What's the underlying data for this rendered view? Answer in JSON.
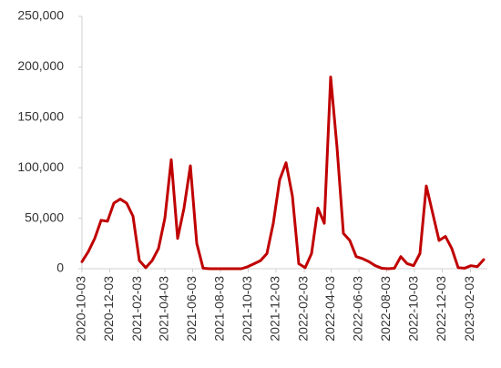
{
  "chart_data": {
    "type": "line",
    "x": [
      "2020-10-03",
      "2020-10-17",
      "2020-10-31",
      "2020-11-14",
      "2020-11-28",
      "2020-12-12",
      "2020-12-26",
      "2021-01-09",
      "2021-01-23",
      "2021-02-06",
      "2021-02-20",
      "2021-03-06",
      "2021-03-20",
      "2021-04-03",
      "2021-04-17",
      "2021-05-01",
      "2021-05-15",
      "2021-05-29",
      "2021-06-12",
      "2021-06-26",
      "2021-07-10",
      "2021-07-24",
      "2021-08-07",
      "2021-08-21",
      "2021-09-04",
      "2021-09-18",
      "2021-10-02",
      "2021-10-16",
      "2021-10-30",
      "2021-11-13",
      "2021-11-27",
      "2021-12-11",
      "2021-12-25",
      "2022-01-08",
      "2022-01-22",
      "2022-02-05",
      "2022-02-19",
      "2022-03-05",
      "2022-03-19",
      "2022-04-02",
      "2022-04-16",
      "2022-04-30",
      "2022-05-14",
      "2022-05-28",
      "2022-06-11",
      "2022-06-25",
      "2022-07-09",
      "2022-07-23",
      "2022-08-06",
      "2022-08-20",
      "2022-09-03",
      "2022-09-17",
      "2022-10-01",
      "2022-10-15",
      "2022-10-29",
      "2022-11-12",
      "2022-11-26",
      "2022-12-10",
      "2022-12-24",
      "2023-01-07",
      "2023-01-21",
      "2023-02-04",
      "2023-02-18",
      "2023-03-04"
    ],
    "series": [
      {
        "color": "#c00000",
        "values": [
          7000,
          17000,
          30000,
          48000,
          47000,
          65000,
          69000,
          65000,
          52000,
          8000,
          1000,
          8000,
          20000,
          50000,
          108000,
          30000,
          60000,
          102000,
          25000,
          500,
          0,
          0,
          0,
          0,
          0,
          0,
          2000,
          5000,
          8000,
          15000,
          45000,
          88000,
          105000,
          72000,
          5000,
          1000,
          15000,
          60000,
          45000,
          190000,
          120000,
          35000,
          28000,
          12000,
          10000,
          7000,
          3000,
          500,
          0,
          500,
          12000,
          5000,
          3000,
          15000,
          82000,
          55000,
          28000,
          32000,
          20000,
          1000,
          500,
          3000,
          2000,
          9000
        ]
      }
    ],
    "xlim": [
      "2020-10-03",
      "2023-03-12"
    ],
    "xticks": [
      "2020-10-03",
      "2020-12-03",
      "2021-02-03",
      "2021-04-03",
      "2021-06-03",
      "2021-08-03",
      "2021-10-03",
      "2021-12-03",
      "2022-02-03",
      "2022-04-03",
      "2022-06-03",
      "2022-08-03",
      "2022-10-03",
      "2022-12-03",
      "2023-02-03"
    ],
    "ylim": [
      0,
      250000
    ],
    "yticks": [
      0,
      {
        "value": 50000,
        "label": "50,000"
      },
      {
        "value": 100000,
        "label": "100,000"
      },
      {
        "value": 150000,
        "label": "150,000"
      },
      {
        "value": 200000,
        "label": "200,000"
      },
      {
        "value": 250000,
        "label": "250,000"
      }
    ],
    "grid": false
  }
}
